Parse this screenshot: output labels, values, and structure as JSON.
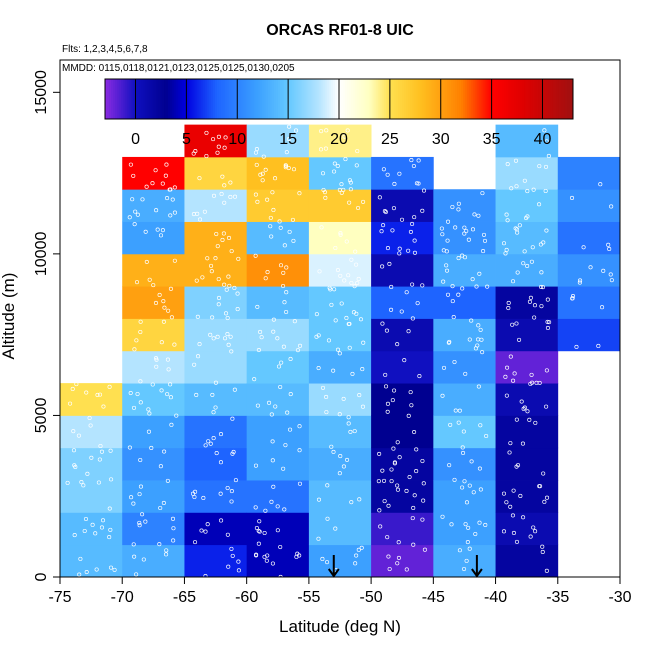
{
  "chart_data": {
    "type": "heatmap",
    "title": "ORCAS RF01-8 UIC",
    "flights_note": "Flts: 1,2,3,4,5,6,7,8",
    "dates_note": "MMDD: 0115,0118,0121,0123,0125,0125,0130,0205",
    "xlabel": "Latitude (deg N)",
    "ylabel": "Altitude (m)",
    "xlim": [
      -75,
      -30
    ],
    "ylim": [
      0,
      16000
    ],
    "x_ticks": [
      -75,
      -70,
      -65,
      -60,
      -55,
      -50,
      -45,
      -40,
      -35,
      -30
    ],
    "y_ticks": [
      0,
      5000,
      10000,
      15000
    ],
    "grid": false,
    "cell_width_deg": 5,
    "cell_height_m": 1000,
    "colorbar": {
      "min": -3,
      "max": 43,
      "ticks": [
        0,
        5,
        10,
        15,
        20,
        25,
        30,
        35,
        40
      ],
      "placement": "top-inside"
    },
    "colormap": [
      [
        -3,
        "#8b2be2"
      ],
      [
        0,
        "#1010c0"
      ],
      [
        3,
        "#000090"
      ],
      [
        5,
        "#0000e0"
      ],
      [
        8,
        "#1e64ff"
      ],
      [
        12,
        "#3ca0ff"
      ],
      [
        15,
        "#64c8ff"
      ],
      [
        18,
        "#b4e4ff"
      ],
      [
        20,
        "#ffffff"
      ],
      [
        23,
        "#ffffc0"
      ],
      [
        25,
        "#ffe050"
      ],
      [
        28,
        "#ffc020"
      ],
      [
        32,
        "#ff8000"
      ],
      [
        35,
        "#ff0000"
      ],
      [
        38,
        "#e00000"
      ],
      [
        43,
        "#a01010"
      ]
    ],
    "columns": [
      {
        "lat_start": -75,
        "values": [
          14,
          14,
          16,
          16,
          18,
          25
        ]
      },
      {
        "lat_start": -70,
        "values": [
          13,
          10,
          12,
          11,
          12,
          15,
          18,
          26,
          30,
          29,
          12,
          13,
          35
        ]
      },
      {
        "lat_start": -65,
        "values": [
          6,
          4,
          9,
          8,
          9,
          14,
          17,
          17,
          16,
          29,
          29,
          18,
          26,
          37
        ]
      },
      {
        "lat_start": -60,
        "values": [
          4,
          4,
          9,
          12,
          12,
          14,
          15,
          17,
          14,
          31,
          14,
          27,
          28,
          17
        ]
      },
      {
        "lat_start": -55,
        "values": [
          12,
          14,
          14,
          13,
          14,
          17,
          13,
          15,
          15,
          19,
          23,
          27,
          15,
          24
        ]
      },
      {
        "lat_start": -50,
        "values": [
          -2,
          -1,
          2,
          2,
          3,
          3,
          0,
          1,
          8,
          1,
          6,
          1,
          9
        ]
      },
      {
        "lat_start": -45,
        "values": [
          13,
          12,
          12,
          11,
          15,
          13,
          11,
          13,
          8,
          13,
          11,
          11
        ]
      },
      {
        "lat_start": -40,
        "values": [
          2,
          1,
          2,
          2,
          2,
          1,
          -2,
          1,
          2,
          13,
          14,
          15,
          17,
          14
        ]
      },
      {
        "lat_start": -35,
        "values": [
          null,
          null,
          null,
          null,
          null,
          null,
          null,
          7,
          9,
          11,
          9,
          11,
          10
        ]
      }
    ],
    "annotations": [
      {
        "type": "arrow-down",
        "lat": -53
      },
      {
        "type": "arrow-down",
        "lat": -41.5
      }
    ]
  }
}
